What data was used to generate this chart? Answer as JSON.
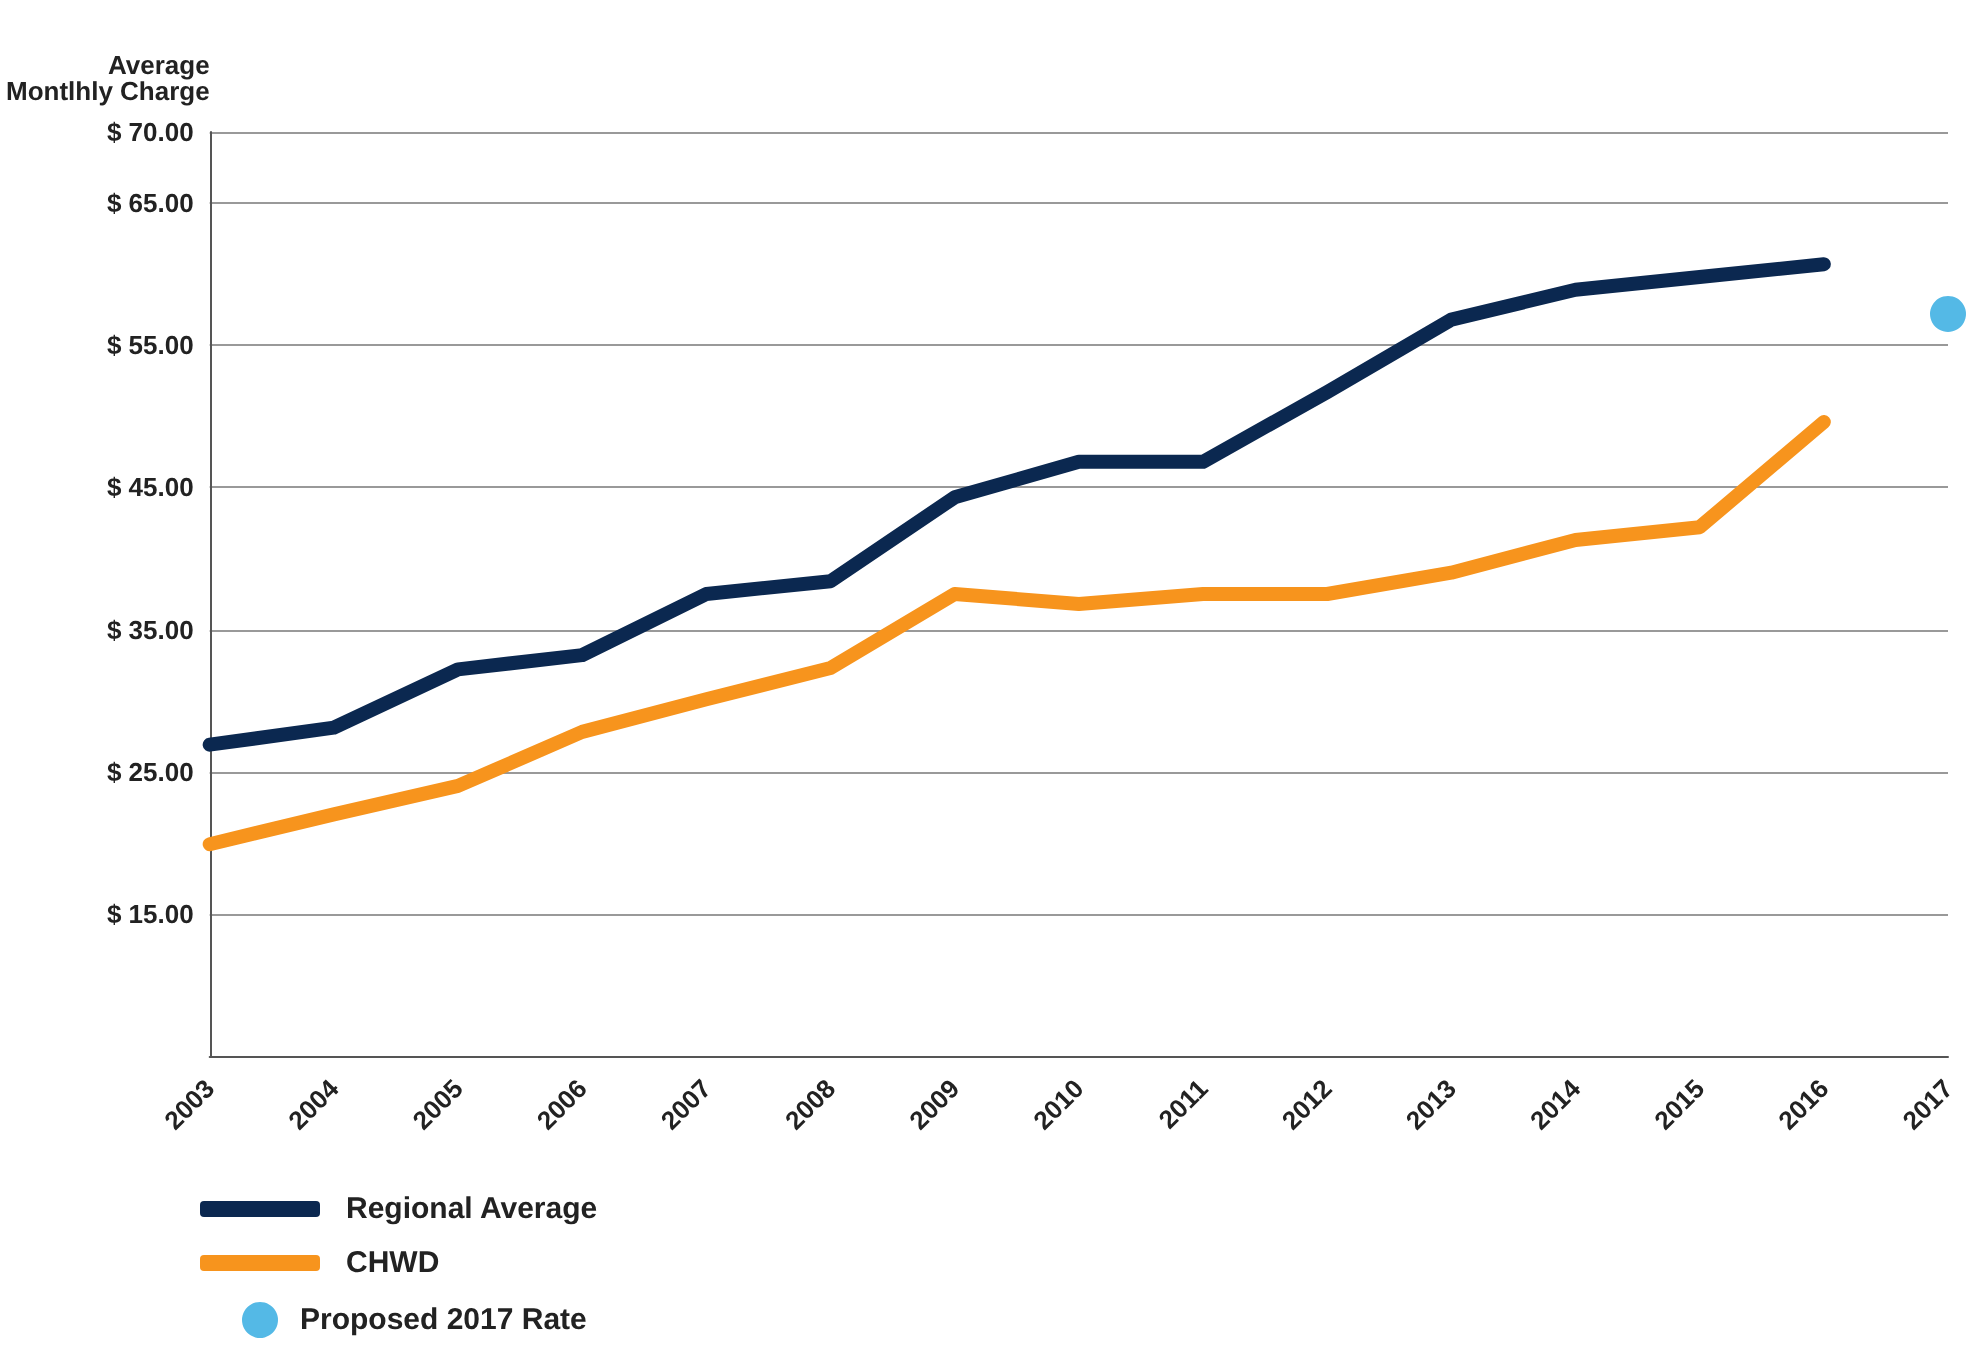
{
  "chart_data": {
    "type": "line",
    "ylabel": "Average\nMontlhly Charge",
    "categories": [
      "2003",
      "2004",
      "2005",
      "2006",
      "2007",
      "2008",
      "2009",
      "2010",
      "2011",
      "2012",
      "2013",
      "2014",
      "2015",
      "2016",
      "2017"
    ],
    "series": [
      {
        "name": "Regional Average",
        "color": "#0b2850",
        "values": [
          26.9,
          28.1,
          32.2,
          33.2,
          37.5,
          38.4,
          44.3,
          46.8,
          46.8,
          51.7,
          56.8,
          58.9,
          59.8,
          60.7,
          null
        ]
      },
      {
        "name": "CHWD",
        "color": "#f7941d",
        "values": [
          19.9,
          22.0,
          24.0,
          27.8,
          30.1,
          32.3,
          37.5,
          36.8,
          37.5,
          37.5,
          39.0,
          41.3,
          42.2,
          49.6,
          null
        ]
      },
      {
        "name": "Proposed 2017 Rate",
        "type": "scatter",
        "marker": "circle",
        "color": "#29a8e0",
        "values": [
          null,
          null,
          null,
          null,
          null,
          null,
          null,
          null,
          null,
          null,
          null,
          null,
          null,
          null,
          57.2
        ]
      }
    ],
    "ylim": [
      5,
      70
    ],
    "yticks": [
      {
        "value": 15,
        "label": "$ 15.00"
      },
      {
        "value": 25,
        "label": "$ 25.00"
      },
      {
        "value": 35,
        "label": "$ 35.00"
      },
      {
        "value": 45,
        "label": "$ 45.00"
      },
      {
        "value": 55,
        "label": "$ 55.00"
      },
      {
        "value": 65,
        "label": "$ 65.00"
      },
      {
        "value": 70,
        "label": "$ 70.00"
      }
    ],
    "grid": "y",
    "legend": "bottom left",
    "marker": "none",
    "line_style": "solid"
  }
}
